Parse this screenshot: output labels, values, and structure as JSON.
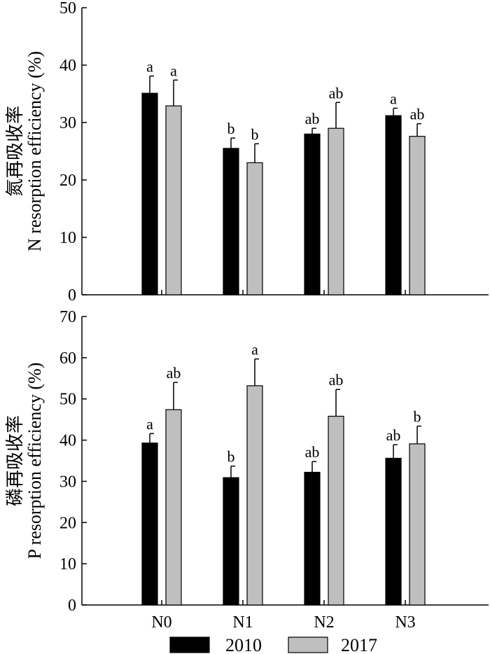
{
  "chart_data": [
    {
      "type": "bar",
      "categories": [
        "N0",
        "N1",
        "N2",
        "N3"
      ],
      "ylabel_cn": "氮再吸收率",
      "ylabel": "N resorption efficiency (%)",
      "ylim": [
        0,
        50
      ],
      "yticks": [
        0,
        10,
        20,
        30,
        40,
        50
      ],
      "series": [
        {
          "name": "2010",
          "color": "#000000",
          "values": [
            35.1,
            25.5,
            28.0,
            31.2
          ],
          "errors": [
            3.0,
            1.8,
            1.0,
            1.3
          ],
          "letters": [
            "a",
            "b",
            "ab",
            "a"
          ]
        },
        {
          "name": "2017",
          "color": "#bfbfbf",
          "values": [
            32.9,
            23.0,
            29.0,
            27.6
          ],
          "errors": [
            4.5,
            3.3,
            4.5,
            2.2
          ],
          "letters": [
            "a",
            "b",
            "ab",
            "ab"
          ]
        }
      ]
    },
    {
      "type": "bar",
      "categories": [
        "N0",
        "N1",
        "N2",
        "N3"
      ],
      "ylabel_cn": "磷再吸收率",
      "ylabel": "P resorption efficiency (%)",
      "ylim": [
        0,
        70
      ],
      "yticks": [
        0,
        10,
        20,
        30,
        40,
        50,
        60,
        70
      ],
      "series": [
        {
          "name": "2010",
          "color": "#000000",
          "values": [
            39.3,
            30.9,
            32.2,
            35.6
          ],
          "errors": [
            2.3,
            2.8,
            2.6,
            3.3
          ],
          "letters": [
            "a",
            "b",
            "ab",
            "ab"
          ]
        },
        {
          "name": "2017",
          "color": "#bfbfbf",
          "values": [
            47.4,
            53.2,
            45.8,
            39.1
          ],
          "errors": [
            6.6,
            6.5,
            6.5,
            4.3
          ],
          "letters": [
            "ab",
            "a",
            "ab",
            "b"
          ]
        }
      ]
    }
  ],
  "legend": {
    "position": "bottom-center",
    "entries": [
      {
        "label": "2010",
        "color": "#000000"
      },
      {
        "label": "2017",
        "color": "#bfbfbf"
      }
    ]
  }
}
